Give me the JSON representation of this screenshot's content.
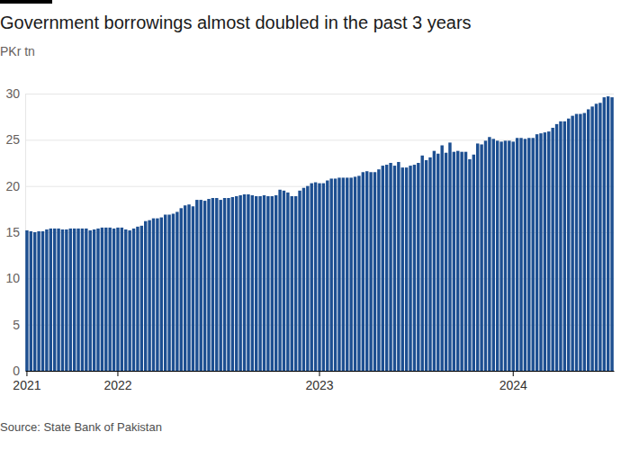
{
  "chart_data": {
    "type": "bar",
    "title": "Government borrowings almost doubled in the past 3 years",
    "subtitle": "PKr tn",
    "source": "Source: State Bank of Pakistan",
    "color": "#1d4f91",
    "grid": true,
    "ylim": [
      0,
      30
    ],
    "yticks": [
      0,
      5,
      10,
      15,
      20,
      25,
      30
    ],
    "categories": [
      "2021",
      null,
      null,
      null,
      null,
      null,
      null,
      null,
      null,
      null,
      null,
      null,
      null,
      null,
      null,
      null,
      null,
      null,
      null,
      null,
      null,
      null,
      null,
      "2022",
      null,
      null,
      null,
      null,
      null,
      null,
      null,
      null,
      null,
      null,
      null,
      null,
      null,
      null,
      null,
      null,
      null,
      null,
      null,
      null,
      null,
      null,
      null,
      null,
      null,
      null,
      null,
      null,
      null,
      null,
      null,
      null,
      null,
      null,
      null,
      null,
      null,
      null,
      null,
      null,
      null,
      null,
      null,
      null,
      null,
      null,
      null,
      null,
      null,
      null,
      "2023",
      null,
      null,
      null,
      null,
      null,
      null,
      null,
      null,
      null,
      null,
      null,
      null,
      null,
      null,
      null,
      null,
      null,
      null,
      null,
      null,
      null,
      null,
      null,
      null,
      null,
      null,
      null,
      null,
      null,
      null,
      null,
      null,
      null,
      null,
      null,
      null,
      null,
      null,
      null,
      null,
      null,
      null,
      null,
      null,
      null,
      null,
      null,
      null,
      "2024",
      null,
      null,
      null,
      null,
      null,
      null,
      null,
      null,
      null,
      null,
      null,
      null,
      null,
      null,
      null,
      null,
      null,
      null,
      null,
      null,
      null,
      null,
      null,
      null,
      null
    ],
    "values": [
      15.2,
      15.1,
      15.0,
      15.1,
      15.1,
      15.3,
      15.4,
      15.4,
      15.4,
      15.3,
      15.3,
      15.4,
      15.4,
      15.4,
      15.4,
      15.4,
      15.2,
      15.3,
      15.4,
      15.5,
      15.5,
      15.5,
      15.4,
      15.5,
      15.5,
      15.3,
      15.2,
      15.4,
      15.6,
      15.7,
      16.2,
      16.3,
      16.5,
      16.5,
      16.6,
      16.9,
      16.9,
      17.0,
      17.2,
      17.6,
      17.9,
      18.0,
      17.8,
      18.5,
      18.5,
      18.4,
      18.6,
      18.7,
      18.7,
      18.5,
      18.7,
      18.7,
      18.8,
      18.9,
      19.0,
      19.1,
      19.1,
      19.0,
      18.9,
      18.9,
      19.0,
      18.9,
      18.9,
      19.0,
      19.6,
      19.5,
      19.3,
      18.9,
      18.9,
      19.5,
      19.8,
      20.0,
      20.3,
      20.4,
      20.3,
      20.3,
      20.6,
      20.8,
      20.8,
      20.9,
      20.9,
      20.9,
      20.9,
      21.0,
      21.1,
      21.5,
      21.6,
      21.5,
      21.5,
      21.8,
      22.2,
      22.3,
      22.5,
      22.2,
      22.6,
      22.0,
      22.0,
      22.2,
      22.3,
      22.5,
      23.3,
      22.8,
      23.1,
      23.8,
      23.5,
      24.4,
      23.6,
      24.7,
      23.7,
      23.8,
      23.7,
      23.7,
      22.9,
      23.4,
      24.6,
      24.5,
      24.9,
      25.3,
      25.1,
      24.9,
      24.8,
      24.9,
      24.9,
      24.8,
      25.2,
      25.2,
      25.1,
      25.2,
      25.2,
      25.6,
      25.7,
      25.8,
      25.9,
      26.3,
      26.7,
      27.0,
      27.0,
      27.3,
      27.6,
      27.8,
      27.8,
      27.9,
      28.3,
      28.6,
      28.9,
      29.0,
      29.6,
      29.7,
      29.6
    ]
  }
}
